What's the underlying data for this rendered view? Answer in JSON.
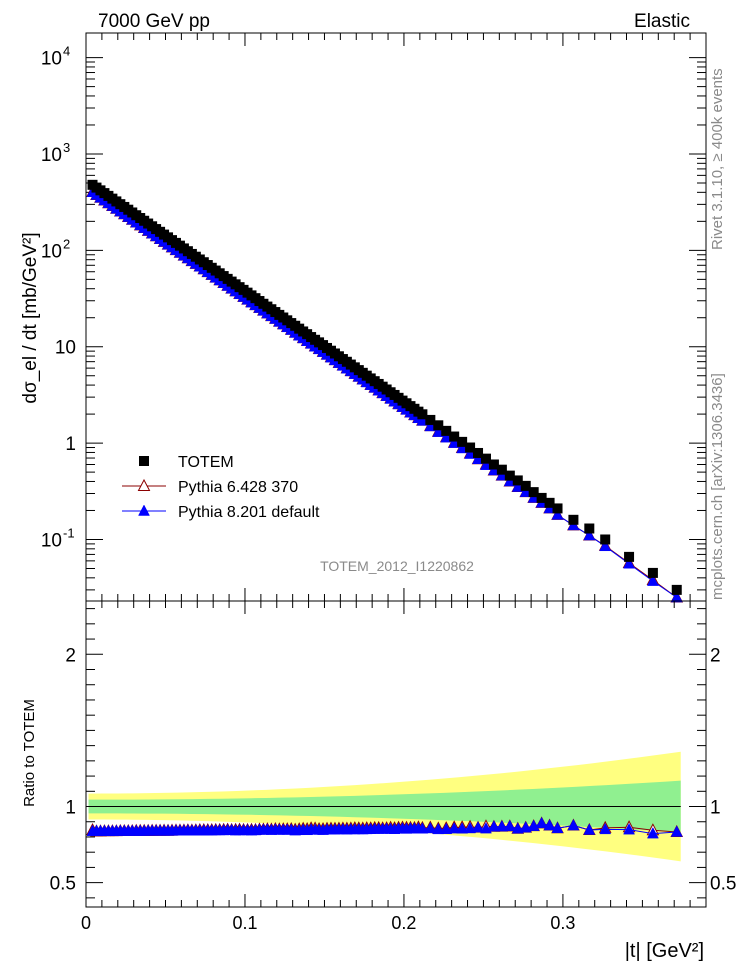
{
  "header": {
    "energy": "7000 GeV pp",
    "process": "Elastic"
  },
  "side_text": {
    "rivet": "Rivet 3.1.10, ≥ 400k events",
    "mcplots": "mcplots.cern.ch [arXiv:1306.3436]"
  },
  "analysis_id": "TOTEM_2012_I1220862",
  "chart_data": [
    {
      "type": "scatter",
      "panel": "main",
      "ylabel": "dσ_el / dt [mb/GeV²]",
      "yscale": "log",
      "ylim": [
        0.023,
        18000
      ],
      "xlim": [
        0,
        0.39
      ],
      "y_ticks": [
        "10^-1",
        "1",
        "10",
        "10^2",
        "10^3",
        "10^4"
      ],
      "legend_position": "lower-left",
      "x": [
        0.0041,
        0.0066,
        0.0091,
        0.0116,
        0.0141,
        0.0166,
        0.0191,
        0.0216,
        0.0241,
        0.0266,
        0.0291,
        0.0316,
        0.0341,
        0.0366,
        0.0391,
        0.0416,
        0.0441,
        0.0466,
        0.0491,
        0.0516,
        0.0541,
        0.0566,
        0.0591,
        0.0616,
        0.0641,
        0.0666,
        0.0691,
        0.0716,
        0.0741,
        0.0766,
        0.0791,
        0.0816,
        0.0841,
        0.0866,
        0.0891,
        0.0916,
        0.0941,
        0.0966,
        0.0991,
        0.1016,
        0.1041,
        0.1066,
        0.1091,
        0.1116,
        0.1141,
        0.1166,
        0.1191,
        0.1216,
        0.1241,
        0.1266,
        0.1291,
        0.1316,
        0.1341,
        0.1366,
        0.1391,
        0.1416,
        0.1441,
        0.1466,
        0.1491,
        0.1516,
        0.1541,
        0.1566,
        0.1591,
        0.1616,
        0.1641,
        0.1666,
        0.1691,
        0.1716,
        0.1741,
        0.1766,
        0.1791,
        0.1816,
        0.1841,
        0.1866,
        0.1891,
        0.1916,
        0.1941,
        0.1966,
        0.1991,
        0.2016,
        0.2041,
        0.2066,
        0.2091,
        0.2116,
        0.2166,
        0.2216,
        0.2266,
        0.2316,
        0.2366,
        0.2416,
        0.2466,
        0.2516,
        0.2566,
        0.2616,
        0.2666,
        0.2716,
        0.2766,
        0.2816,
        0.2866,
        0.2916,
        0.2966,
        0.3066,
        0.3166,
        0.3266,
        0.3416,
        0.3566,
        0.3716
      ],
      "series": [
        {
          "name": "TOTEM",
          "marker": "square",
          "color": "#000000",
          "values": [
            478.7,
            448.0,
            419.4,
            392.6,
            367.5,
            344.0,
            322.0,
            301.4,
            282.1,
            264.1,
            247.2,
            231.4,
            216.6,
            202.8,
            189.8,
            177.7,
            166.3,
            155.7,
            145.7,
            136.4,
            127.7,
            119.5,
            111.9,
            104.7,
            98.0,
            91.8,
            85.9,
            80.4,
            75.3,
            70.4,
            65.9,
            61.7,
            57.8,
            54.1,
            50.6,
            47.4,
            44.4,
            41.5,
            38.9,
            36.4,
            34.1,
            31.9,
            29.8,
            27.9,
            26.1,
            24.5,
            22.9,
            21.4,
            20.1,
            18.8,
            17.6,
            16.5,
            15.4,
            14.4,
            13.5,
            12.6,
            11.8,
            11.1,
            10.4,
            9.71,
            9.09,
            8.51,
            7.96,
            7.45,
            6.98,
            6.53,
            6.11,
            5.72,
            5.36,
            5.01,
            4.69,
            4.39,
            4.11,
            3.85,
            3.6,
            3.37,
            3.16,
            2.95,
            2.76,
            2.59,
            2.42,
            2.27,
            2.12,
            1.99,
            1.74,
            1.53,
            1.34,
            1.17,
            1.03,
            0.9,
            0.79,
            0.69,
            0.6,
            0.53,
            0.46,
            0.41,
            0.36,
            0.31,
            0.27,
            0.24,
            0.21,
            0.16,
            0.13,
            0.1,
            0.066,
            0.045,
            0.03
          ]
        },
        {
          "name": "Pythia 6.428 370",
          "marker": "open-triangle",
          "color": "#8b0000",
          "values": [
            404.3,
            375.0,
            351.1,
            328.8,
            307.9,
            288.3,
            269.9,
            252.8,
            236.7,
            221.6,
            207.5,
            194.3,
            181.9,
            170.4,
            159.5,
            149.4,
            139.9,
            131.0,
            122.6,
            114.8,
            107.5,
            100.7,
            94.3,
            88.3,
            82.7,
            77.4,
            72.5,
            67.9,
            63.6,
            59.5,
            55.7,
            52.2,
            48.9,
            45.8,
            42.9,
            40.1,
            37.6,
            35.2,
            32.9,
            30.8,
            28.9,
            27.0,
            25.3,
            23.7,
            22.2,
            20.8,
            19.5,
            18.2,
            17.1,
            16.0,
            15.0,
            14.0,
            13.1,
            12.3,
            11.5,
            10.8,
            10.1,
            9.46,
            8.86,
            8.29,
            7.77,
            7.27,
            6.81,
            6.38,
            5.97,
            5.59,
            5.24,
            4.9,
            4.59,
            4.3,
            4.02,
            3.77,
            3.53,
            3.3,
            3.09,
            2.9,
            2.71,
            2.54,
            2.38,
            2.23,
            2.08,
            1.95,
            1.83,
            1.71,
            1.5,
            1.31,
            1.15,
            1.01,
            0.89,
            0.78,
            0.68,
            0.6,
            0.52,
            0.46,
            0.4,
            0.35,
            0.31,
            0.27,
            0.24,
            0.21,
            0.18,
            0.14,
            0.11,
            0.086,
            0.057,
            0.038,
            0.025
          ]
        },
        {
          "name": "Pythia 8.201 default",
          "marker": "filled-triangle",
          "color": "#0000ff",
          "values": [
            401.0,
            375.8,
            351.4,
            329.0,
            308.0,
            288.4,
            270.0,
            252.8,
            236.7,
            221.6,
            207.4,
            194.2,
            181.8,
            170.2,
            159.4,
            149.2,
            139.7,
            130.8,
            122.4,
            114.6,
            107.3,
            100.5,
            94.1,
            88.1,
            82.5,
            77.2,
            72.3,
            67.7,
            63.4,
            59.3,
            55.5,
            52.0,
            48.7,
            45.6,
            42.7,
            40.0,
            37.4,
            35.0,
            32.8,
            30.7,
            28.7,
            26.9,
            25.2,
            23.6,
            22.1,
            20.7,
            19.4,
            18.1,
            17.0,
            15.9,
            14.9,
            13.9,
            13.0,
            12.2,
            11.4,
            10.7,
            10.0,
            9.39,
            8.79,
            8.23,
            7.71,
            7.22,
            6.76,
            6.33,
            5.92,
            5.55,
            5.19,
            4.86,
            4.55,
            4.26,
            3.99,
            3.74,
            3.5,
            3.28,
            3.07,
            2.87,
            2.69,
            2.52,
            2.36,
            2.21,
            2.07,
            1.94,
            1.81,
            1.7,
            1.49,
            1.3,
            1.14,
            1.0,
            0.88,
            0.77,
            0.68,
            0.59,
            0.52,
            0.46,
            0.4,
            0.35,
            0.31,
            0.27,
            0.24,
            0.21,
            0.18,
            0.14,
            0.11,
            0.085,
            0.056,
            0.037,
            0.025
          ]
        }
      ]
    },
    {
      "type": "scatter",
      "panel": "ratio",
      "ylabel": "Ratio to TOTEM",
      "xlabel": "|t| [GeV²]",
      "ylim": [
        0.34,
        2.35
      ],
      "xlim": [
        0,
        0.39
      ],
      "x_ticks": [
        "0",
        "0.1",
        "0.2",
        "0.3"
      ],
      "y_ticks": [
        "0.5",
        "1",
        "2"
      ],
      "band_inner_halfwidth_start": 0.045,
      "band_inner_halfwidth_end": 0.17,
      "band_outer_halfwidth_start": 0.085,
      "band_outer_halfwidth_end": 0.36,
      "x": [
        0.0041,
        0.0066,
        0.0091,
        0.0116,
        0.0141,
        0.0166,
        0.0191,
        0.0216,
        0.0241,
        0.0266,
        0.0291,
        0.0316,
        0.0341,
        0.0366,
        0.0391,
        0.0416,
        0.0441,
        0.0466,
        0.0491,
        0.0516,
        0.0541,
        0.0566,
        0.0591,
        0.0616,
        0.0641,
        0.0666,
        0.0691,
        0.0716,
        0.0741,
        0.0766,
        0.0791,
        0.0816,
        0.0841,
        0.0866,
        0.0891,
        0.0916,
        0.0941,
        0.0966,
        0.0991,
        0.1016,
        0.1041,
        0.1066,
        0.1091,
        0.1116,
        0.1141,
        0.1166,
        0.1191,
        0.1216,
        0.1241,
        0.1266,
        0.1291,
        0.1316,
        0.1341,
        0.1366,
        0.1391,
        0.1416,
        0.1441,
        0.1466,
        0.1491,
        0.1516,
        0.1541,
        0.1566,
        0.1591,
        0.1616,
        0.1641,
        0.1666,
        0.1691,
        0.1716,
        0.1741,
        0.1766,
        0.1791,
        0.1816,
        0.1841,
        0.1866,
        0.1891,
        0.1916,
        0.1941,
        0.1966,
        0.1991,
        0.2016,
        0.2041,
        0.2066,
        0.2091,
        0.2116,
        0.2166,
        0.2216,
        0.2266,
        0.2316,
        0.2366,
        0.2416,
        0.2466,
        0.2516,
        0.2566,
        0.2616,
        0.2666,
        0.2716,
        0.2766,
        0.2816,
        0.2866,
        0.2916,
        0.2966,
        0.3066,
        0.3166,
        0.3266,
        0.3416,
        0.3566,
        0.3716
      ],
      "series": [
        {
          "name": "Pythia 6.428 370",
          "marker": "open-triangle",
          "color": "#8b0000",
          "values": [
            0.845,
            0.837,
            0.837,
            0.838,
            0.838,
            0.838,
            0.838,
            0.839,
            0.839,
            0.839,
            0.839,
            0.84,
            0.84,
            0.84,
            0.84,
            0.841,
            0.841,
            0.841,
            0.842,
            0.841,
            0.842,
            0.843,
            0.843,
            0.843,
            0.844,
            0.843,
            0.844,
            0.845,
            0.845,
            0.845,
            0.845,
            0.846,
            0.846,
            0.847,
            0.848,
            0.846,
            0.847,
            0.848,
            0.846,
            0.846,
            0.847,
            0.846,
            0.849,
            0.849,
            0.851,
            0.849,
            0.852,
            0.85,
            0.851,
            0.851,
            0.852,
            0.848,
            0.851,
            0.854,
            0.852,
            0.857,
            0.856,
            0.852,
            0.852,
            0.854,
            0.855,
            0.854,
            0.855,
            0.856,
            0.855,
            0.856,
            0.858,
            0.857,
            0.856,
            0.858,
            0.857,
            0.859,
            0.859,
            0.857,
            0.858,
            0.861,
            0.858,
            0.861,
            0.862,
            0.861,
            0.86,
            0.859,
            0.863,
            0.859,
            0.862,
            0.856,
            0.858,
            0.863,
            0.864,
            0.867,
            0.861,
            0.87,
            0.867,
            0.868,
            0.87,
            0.854,
            0.861,
            0.871,
            0.889,
            0.875,
            0.857,
            0.875,
            0.846,
            0.86,
            0.864,
            0.844,
            0.833
          ]
        },
        {
          "name": "Pythia 8.201 default",
          "marker": "filled-triangle",
          "color": "#0000ff",
          "values": [
            0.838,
            0.839,
            0.838,
            0.838,
            0.838,
            0.838,
            0.839,
            0.839,
            0.839,
            0.839,
            0.839,
            0.839,
            0.839,
            0.839,
            0.84,
            0.84,
            0.84,
            0.84,
            0.84,
            0.84,
            0.84,
            0.841,
            0.841,
            0.841,
            0.842,
            0.841,
            0.842,
            0.842,
            0.842,
            0.842,
            0.842,
            0.843,
            0.843,
            0.843,
            0.844,
            0.844,
            0.842,
            0.843,
            0.843,
            0.843,
            0.842,
            0.843,
            0.846,
            0.846,
            0.847,
            0.845,
            0.847,
            0.846,
            0.846,
            0.846,
            0.847,
            0.842,
            0.844,
            0.847,
            0.844,
            0.849,
            0.847,
            0.846,
            0.845,
            0.848,
            0.848,
            0.848,
            0.849,
            0.85,
            0.848,
            0.85,
            0.849,
            0.85,
            0.849,
            0.85,
            0.851,
            0.852,
            0.852,
            0.852,
            0.853,
            0.852,
            0.851,
            0.854,
            0.855,
            0.853,
            0.855,
            0.855,
            0.854,
            0.854,
            0.856,
            0.85,
            0.851,
            0.855,
            0.854,
            0.856,
            0.861,
            0.855,
            0.867,
            0.868,
            0.87,
            0.854,
            0.861,
            0.871,
            0.889,
            0.875,
            0.857,
            0.875,
            0.846,
            0.85,
            0.848,
            0.822,
            0.833
          ]
        }
      ]
    }
  ]
}
